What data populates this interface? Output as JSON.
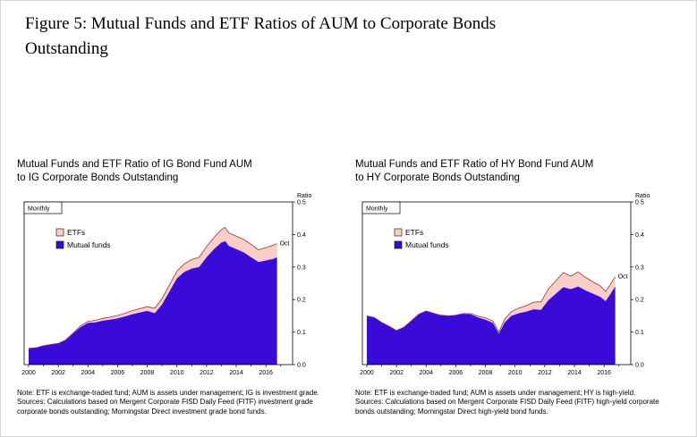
{
  "page": {
    "figure_title": "Figure 5: Mutual Funds and ETF Ratios of AUM to Corporate Bonds\nOutstanding"
  },
  "colors": {
    "mutual_funds": "#3a0bd8",
    "etfs": "#f7cfc6",
    "etf_edge": "#8f3a32",
    "frame": "#000000"
  },
  "chart_data": [
    {
      "type": "area",
      "stacked": true,
      "title": "Mutual Funds and ETF Ratio of IG Bond Fund AUM\nto IG Corporate Bonds Outstanding",
      "frequency_label": "Monthly",
      "legend": [
        "ETFs",
        "Mutual funds"
      ],
      "ylabel": "Ratio",
      "ylim": [
        0,
        0.5
      ],
      "yticks": [
        0.0,
        0.1,
        0.2,
        0.3,
        0.4,
        0.5
      ],
      "xticks": [
        2000,
        2002,
        2004,
        2006,
        2008,
        2010,
        2012,
        2014,
        2016
      ],
      "annotation": "Oct",
      "x": [
        2000,
        2000.5,
        2001,
        2001.5,
        2002,
        2002.5,
        2003,
        2003.5,
        2004,
        2004.5,
        2005,
        2005.5,
        2006,
        2006.5,
        2007,
        2007.5,
        2008,
        2008.5,
        2009,
        2009.5,
        2010,
        2010.5,
        2011,
        2011.5,
        2012,
        2012.5,
        2013,
        2013.25,
        2013.5,
        2014,
        2014.5,
        2015,
        2015.5,
        2016,
        2016.5,
        2016.75
      ],
      "series": [
        {
          "name": "Mutual funds",
          "values": [
            0.05,
            0.052,
            0.058,
            0.062,
            0.065,
            0.075,
            0.095,
            0.115,
            0.128,
            0.13,
            0.135,
            0.138,
            0.142,
            0.148,
            0.155,
            0.16,
            0.165,
            0.158,
            0.185,
            0.225,
            0.265,
            0.285,
            0.295,
            0.3,
            0.33,
            0.355,
            0.375,
            0.38,
            0.365,
            0.355,
            0.345,
            0.33,
            0.315,
            0.32,
            0.325,
            0.33
          ]
        },
        {
          "name": "ETFs",
          "values": [
            0,
            0,
            0,
            0,
            0,
            0.001,
            0.002,
            0.004,
            0.005,
            0.006,
            0.007,
            0.008,
            0.009,
            0.01,
            0.011,
            0.012,
            0.013,
            0.015,
            0.018,
            0.02,
            0.022,
            0.025,
            0.028,
            0.03,
            0.033,
            0.036,
            0.04,
            0.042,
            0.04,
            0.04,
            0.04,
            0.04,
            0.038,
            0.04,
            0.042,
            0.042
          ]
        }
      ],
      "note": "Note: ETF is exchange-traded fund; AUM is assets under management; IG is investment grade.",
      "sources": "Sources: Calculations based on Mergent Corporate FISD Daily Feed (FITF) investment grade corporate bonds outstanding; Morningstar Direct investment grade bond funds."
    },
    {
      "type": "area",
      "stacked": true,
      "title": "Mutual Funds and ETF Ratio of HY Bond Fund AUM\nto HY Corporate Bonds Outstanding",
      "frequency_label": "Monthly",
      "legend": [
        "ETFs",
        "Mutual funds"
      ],
      "ylabel": "Ratio",
      "ylim": [
        0,
        0.5
      ],
      "yticks": [
        0.0,
        0.1,
        0.2,
        0.3,
        0.4,
        0.5
      ],
      "xticks": [
        2000,
        2002,
        2004,
        2006,
        2008,
        2010,
        2012,
        2014,
        2016
      ],
      "annotation": "Oct",
      "x": [
        2000,
        2000.5,
        2001,
        2001.5,
        2002,
        2002.5,
        2003,
        2003.5,
        2004,
        2004.5,
        2005,
        2005.5,
        2006,
        2006.5,
        2007,
        2007.5,
        2008,
        2008.5,
        2008.9,
        2009.3,
        2009.75,
        2010.25,
        2010.75,
        2011.25,
        2011.75,
        2012.25,
        2012.75,
        2013.25,
        2013.75,
        2014.25,
        2014.75,
        2015.25,
        2015.75,
        2016.1,
        2016.4,
        2016.75
      ],
      "series": [
        {
          "name": "Mutual funds",
          "values": [
            0.15,
            0.145,
            0.13,
            0.118,
            0.105,
            0.115,
            0.135,
            0.155,
            0.165,
            0.158,
            0.152,
            0.15,
            0.152,
            0.156,
            0.155,
            0.145,
            0.138,
            0.128,
            0.095,
            0.13,
            0.15,
            0.158,
            0.163,
            0.17,
            0.168,
            0.198,
            0.218,
            0.238,
            0.232,
            0.24,
            0.228,
            0.218,
            0.208,
            0.195,
            0.215,
            0.24
          ]
        },
        {
          "name": "ETFs",
          "values": [
            0,
            0,
            0,
            0,
            0,
            0,
            0,
            0,
            0,
            0,
            0,
            0,
            0,
            0.001,
            0.002,
            0.004,
            0.006,
            0.006,
            0.005,
            0.01,
            0.013,
            0.016,
            0.018,
            0.022,
            0.025,
            0.035,
            0.04,
            0.045,
            0.04,
            0.045,
            0.04,
            0.036,
            0.034,
            0.03,
            0.03,
            0.03
          ]
        }
      ],
      "note": "Note: ETF is exchange-traded fund; AUM is assets under management; HY is high-yield.",
      "sources": "Sources: Calculations based on Mergent Corporate FISD Daily Feed (FITF) high-yield corporate bonds outstanding; Morningstar Direct high-yield bond funds."
    }
  ]
}
